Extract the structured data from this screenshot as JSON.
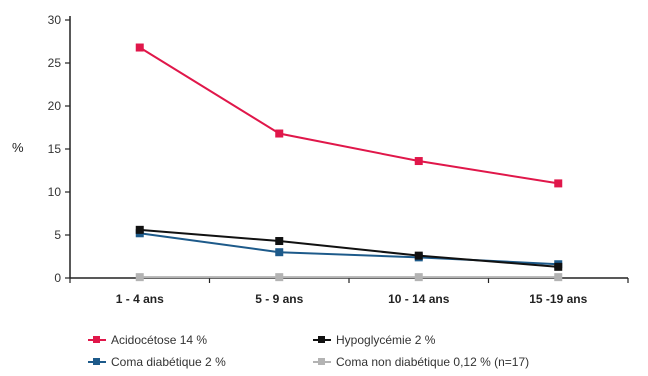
{
  "chart_data": {
    "type": "line",
    "title": "",
    "xlabel": "",
    "ylabel": "%",
    "ylim": [
      0,
      30
    ],
    "yticks": [
      "0",
      "5",
      "10",
      "15",
      "20",
      "25",
      "30"
    ],
    "categories": [
      "1 - 4 ans",
      "5 - 9 ans",
      "10 - 14 ans",
      "15 -19 ans"
    ],
    "grid": false,
    "legend_position": "bottom",
    "series": [
      {
        "name": "Acidocétose 14 %",
        "color": "#e0174a",
        "values": [
          26.8,
          16.8,
          13.6,
          11.0
        ]
      },
      {
        "name": "Hypoglycémie 2 %",
        "color": "#111111",
        "values": [
          5.6,
          4.3,
          2.6,
          1.3
        ]
      },
      {
        "name": "Coma diabétique 2 %",
        "color": "#1d5a8a",
        "values": [
          5.2,
          3.0,
          2.4,
          1.6
        ]
      },
      {
        "name": "Coma non diabétique 0,12 % (n=17)",
        "color": "#b3b3b3",
        "values": [
          0.1,
          0.1,
          0.1,
          0.1
        ]
      }
    ]
  }
}
